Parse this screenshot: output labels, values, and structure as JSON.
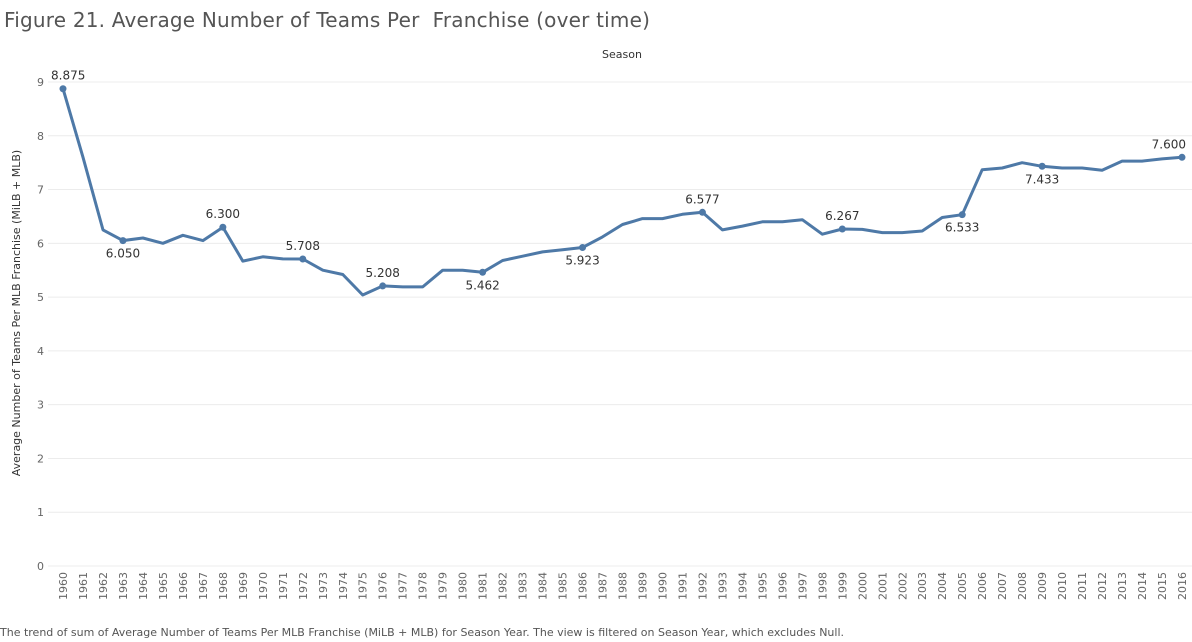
{
  "title": "Figure 21. Average Number of Teams Per  Franchise (over time)",
  "caption": "The trend of sum of Average Number of Teams Per MLB Franchise (MiLB + MLB) for Season Year. The view is filtered on Season Year, which excludes Null.",
  "colors": {
    "line": "#4e79a7",
    "grid": "#ececec",
    "axis_text": "#666666",
    "label_text": "#333333"
  },
  "chart_data": {
    "type": "line",
    "title": "Figure 21. Average Number of Teams Per  Franchise (over time)",
    "column_header": "Season",
    "xlabel": "",
    "ylabel": "Average Number of Teams Per MLB Franchise (MiLB + MLB)",
    "ylim": [
      0,
      9
    ],
    "yticks": [
      0,
      1,
      2,
      3,
      4,
      5,
      6,
      7,
      8,
      9
    ],
    "grid": "horizontal",
    "x": [
      "1960",
      "1961",
      "1962",
      "1963",
      "1964",
      "1965",
      "1966",
      "1967",
      "1968",
      "1969",
      "1970",
      "1971",
      "1972",
      "1973",
      "1974",
      "1975",
      "1976",
      "1977",
      "1978",
      "1979",
      "1980",
      "1981",
      "1982",
      "1983",
      "1984",
      "1985",
      "1986",
      "1987",
      "1988",
      "1989",
      "1990",
      "1991",
      "1992",
      "1993",
      "1994",
      "1995",
      "1996",
      "1997",
      "1998",
      "1999",
      "2000",
      "2001",
      "2002",
      "2003",
      "2004",
      "2005",
      "2006",
      "2007",
      "2008",
      "2009",
      "2010",
      "2011",
      "2012",
      "2013",
      "2014",
      "2015",
      "2016"
    ],
    "series": [
      {
        "values": [
          8.875,
          7.6,
          6.25,
          6.05,
          6.1,
          6.0,
          6.15,
          6.05,
          6.3,
          5.67,
          5.75,
          5.71,
          5.708,
          5.5,
          5.42,
          5.04,
          5.208,
          5.19,
          5.19,
          5.5,
          5.5,
          5.462,
          5.68,
          5.76,
          5.84,
          5.88,
          5.923,
          6.12,
          6.35,
          6.46,
          6.46,
          6.54,
          6.577,
          6.25,
          6.32,
          6.4,
          6.4,
          6.44,
          6.17,
          6.267,
          6.26,
          6.2,
          6.2,
          6.23,
          6.48,
          6.533,
          7.37,
          7.4,
          7.5,
          7.433,
          7.4,
          7.4,
          7.36,
          7.53,
          7.53,
          7.57,
          7.6
        ]
      }
    ],
    "data_labels": [
      {
        "x": "1960",
        "text": "8.875",
        "pos": "above"
      },
      {
        "x": "1963",
        "text": "6.050",
        "pos": "below"
      },
      {
        "x": "1968",
        "text": "6.300",
        "pos": "above"
      },
      {
        "x": "1972",
        "text": "5.708",
        "pos": "above"
      },
      {
        "x": "1976",
        "text": "5.208",
        "pos": "above"
      },
      {
        "x": "1981",
        "text": "5.462",
        "pos": "below"
      },
      {
        "x": "1986",
        "text": "5.923",
        "pos": "below"
      },
      {
        "x": "1992",
        "text": "6.577",
        "pos": "above"
      },
      {
        "x": "1999",
        "text": "6.267",
        "pos": "above"
      },
      {
        "x": "2005",
        "text": "6.533",
        "pos": "below"
      },
      {
        "x": "2009",
        "text": "7.433",
        "pos": "below"
      },
      {
        "x": "2016",
        "text": "7.600",
        "pos": "above"
      }
    ]
  }
}
